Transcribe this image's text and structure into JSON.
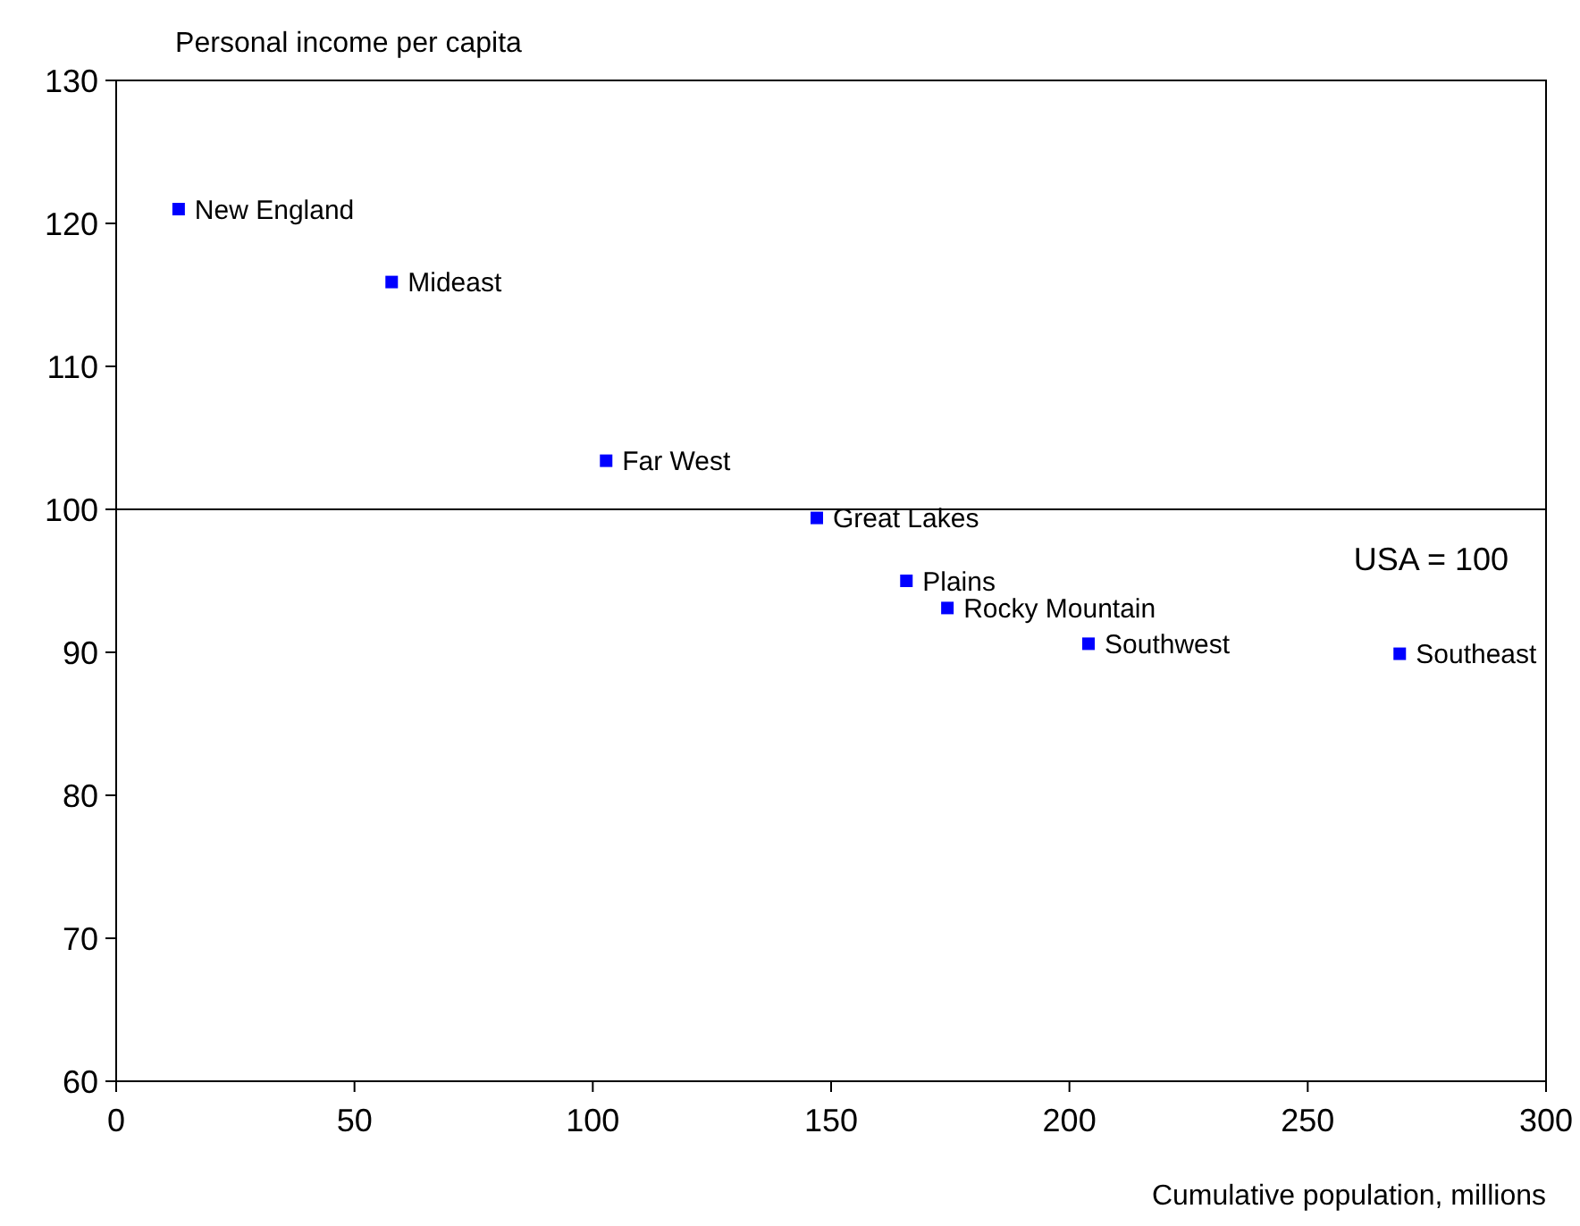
{
  "chart_data": {
    "type": "scatter",
    "ylabel": "Personal income per capita",
    "xlabel": "Cumulative population, millions",
    "x": [
      13.1,
      57.8,
      102.8,
      147,
      165.8,
      174.4,
      204,
      269.3
    ],
    "series": [
      {
        "color": "#0000ff",
        "values": [
          121,
          115.9,
          103.4,
          99.4,
          95,
          93.1,
          90.6,
          89.9
        ]
      }
    ],
    "marker": "square",
    "grid": false,
    "xlim": [
      0,
      300
    ],
    "xticks": [
      0,
      50,
      100,
      150,
      200,
      250,
      300
    ],
    "ylim": [
      60,
      130
    ],
    "yticks": [
      60,
      70,
      80,
      90,
      100,
      110,
      120,
      130
    ],
    "ref_lines": [
      {
        "axis": "y",
        "value": 100,
        "label": "USA = 100",
        "color": "#000000"
      }
    ],
    "annotations": [
      {
        "text": "New England",
        "x": 13.1,
        "y": 121
      },
      {
        "text": "Mideast",
        "x": 57.8,
        "y": 115.9
      },
      {
        "text": "Far West",
        "x": 102.8,
        "y": 103.4
      },
      {
        "text": "Great Lakes",
        "x": 147,
        "y": 99.4
      },
      {
        "text": "Plains",
        "x": 165.8,
        "y": 95
      },
      {
        "text": "Rocky Mountain",
        "x": 174.4,
        "y": 93.1
      },
      {
        "text": "Southwest",
        "x": 204,
        "y": 90.6
      },
      {
        "text": "Southeast",
        "x": 269.3,
        "y": 89.9
      }
    ]
  }
}
